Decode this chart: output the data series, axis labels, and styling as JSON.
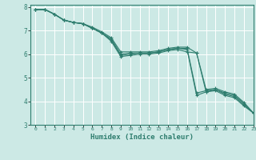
{
  "title": "",
  "xlabel": "Humidex (Indice chaleur)",
  "xlim": [
    -0.5,
    23
  ],
  "ylim": [
    3,
    8.1
  ],
  "xticks": [
    0,
    1,
    2,
    3,
    4,
    5,
    6,
    7,
    8,
    9,
    10,
    11,
    12,
    13,
    14,
    15,
    16,
    17,
    18,
    19,
    20,
    21,
    22,
    23
  ],
  "yticks": [
    3,
    4,
    5,
    6,
    7,
    8
  ],
  "bg_color": "#cce9e5",
  "grid_color": "#ffffff",
  "line_color": "#2e7d6e",
  "lines": [
    {
      "x": [
        0,
        1,
        2,
        3,
        4,
        5,
        6,
        7,
        8,
        9,
        10,
        11,
        12,
        13,
        14,
        15,
        16,
        17,
        18,
        19,
        20,
        21,
        22,
        23
      ],
      "y": [
        7.9,
        7.9,
        7.7,
        7.45,
        7.35,
        7.3,
        7.1,
        6.9,
        6.55,
        5.9,
        5.95,
        6.0,
        6.0,
        6.05,
        6.15,
        6.2,
        6.1,
        6.05,
        4.4,
        4.45,
        4.25,
        4.15,
        3.8,
        3.5
      ]
    },
    {
      "x": [
        0,
        1,
        2,
        3,
        4,
        5,
        6,
        7,
        8,
        9,
        10,
        11,
        12,
        13,
        14,
        15,
        16,
        17,
        18,
        19,
        20,
        21,
        22,
        23
      ],
      "y": [
        7.9,
        7.9,
        7.7,
        7.45,
        7.35,
        7.3,
        7.1,
        6.9,
        6.6,
        5.95,
        6.0,
        6.05,
        6.05,
        6.1,
        6.2,
        6.25,
        6.2,
        4.25,
        4.4,
        4.5,
        4.3,
        4.2,
        3.85,
        3.5
      ]
    },
    {
      "x": [
        0,
        1,
        2,
        3,
        4,
        5,
        6,
        7,
        8,
        9,
        10,
        11,
        12,
        13,
        14,
        15,
        16,
        17,
        18,
        19,
        20,
        21,
        22,
        23
      ],
      "y": [
        7.9,
        7.9,
        7.7,
        7.45,
        7.35,
        7.3,
        7.1,
        6.9,
        6.65,
        6.0,
        6.05,
        6.05,
        6.05,
        6.1,
        6.2,
        6.25,
        6.25,
        4.35,
        4.45,
        4.5,
        4.35,
        4.25,
        3.9,
        3.5
      ]
    },
    {
      "x": [
        0,
        1,
        2,
        3,
        4,
        5,
        6,
        7,
        8,
        9,
        10,
        11,
        12,
        13,
        14,
        15,
        16,
        17,
        18,
        19,
        20,
        21,
        22,
        23
      ],
      "y": [
        7.9,
        7.9,
        7.7,
        7.45,
        7.35,
        7.3,
        7.15,
        6.95,
        6.7,
        6.1,
        6.1,
        6.1,
        6.1,
        6.15,
        6.25,
        6.3,
        6.3,
        6.05,
        4.5,
        4.55,
        4.4,
        4.3,
        3.95,
        3.5
      ]
    }
  ]
}
